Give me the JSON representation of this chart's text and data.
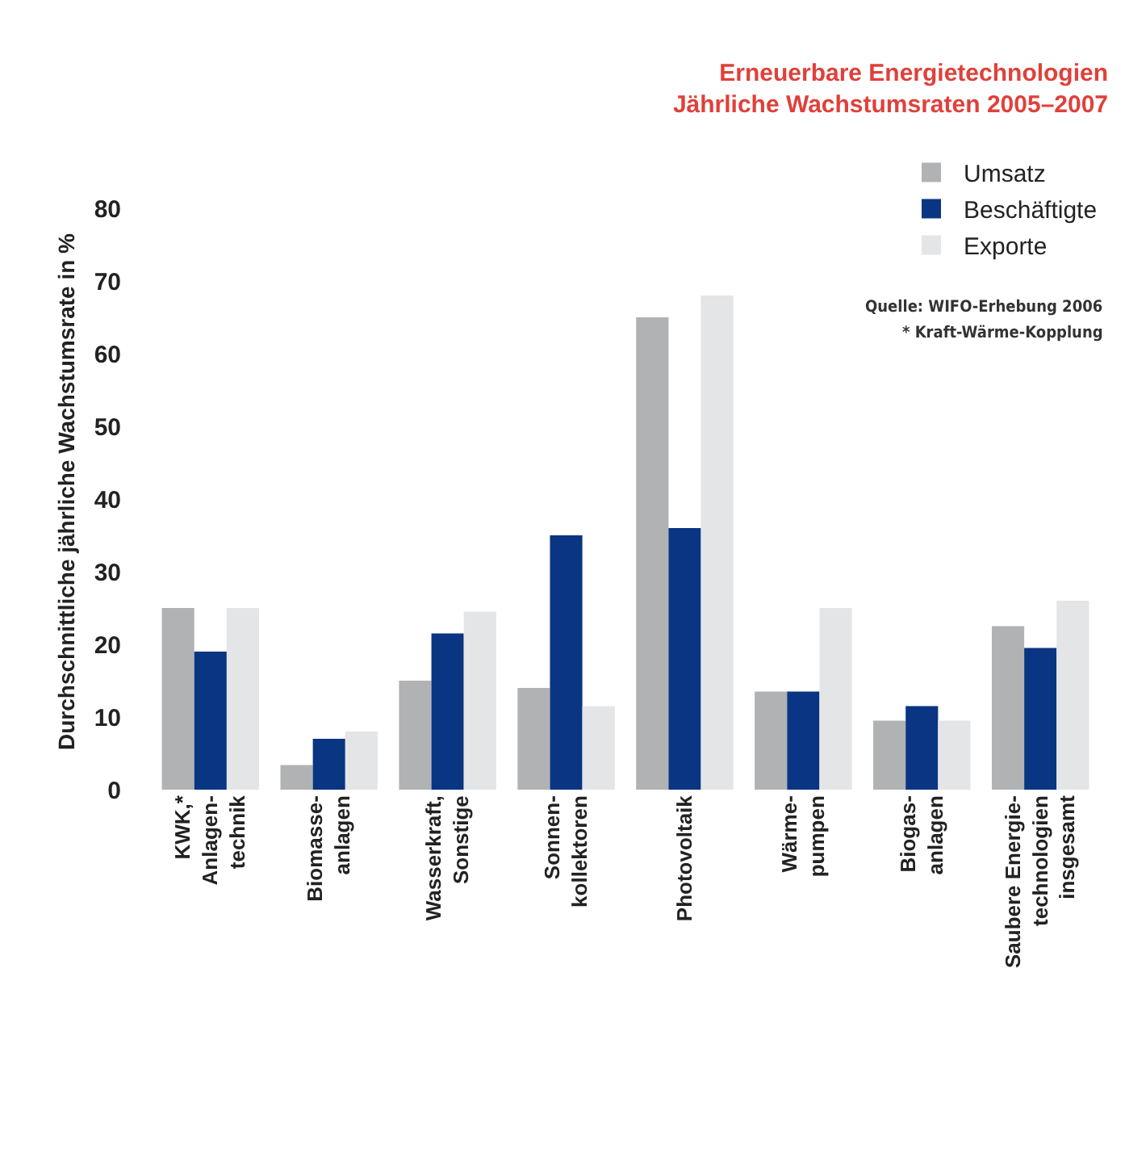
{
  "chart_data": {
    "type": "bar",
    "title": "Erneuerbare Energietechnologien\nJährliche Wachstumsraten 2005–2007",
    "ylabel": "Durchschnittliche jährliche Wachstumsrate in %",
    "categories": [
      "KWK,*\nAnlagen-\ntechnik",
      "Biomasse-\nanlagen",
      "Wasserkraft,\nSonstige",
      "Sonnen-\nkollektoren",
      "Photovoltaik",
      "Wärme-\npumpen",
      "Biogas-\nanlagen",
      "Saubere Energie-\ntechnologien\ninsgesamt"
    ],
    "series": [
      {
        "name": "Umsatz",
        "color": "#b1b2b4",
        "values": [
          25,
          3.4,
          15,
          14,
          65,
          13.5,
          9.5,
          22.5
        ]
      },
      {
        "name": "Beschäftigte",
        "color": "#0a3582",
        "values": [
          19,
          7,
          21.5,
          35,
          36,
          13.5,
          11.5,
          19.5
        ]
      },
      {
        "name": "Exporte",
        "color": "#e4e5e7",
        "values": [
          25,
          8,
          24.5,
          11.5,
          68,
          25,
          9.5,
          26
        ]
      }
    ],
    "ylim": [
      0,
      82
    ],
    "yticks": [
      0,
      10,
      20,
      30,
      40,
      50,
      60,
      70,
      80
    ],
    "grid": false,
    "legend": "top right",
    "annotations": [
      "Quelle: WIFO-Erhebung 2006",
      "* Kraft-Wärme-Kopplung"
    ]
  }
}
